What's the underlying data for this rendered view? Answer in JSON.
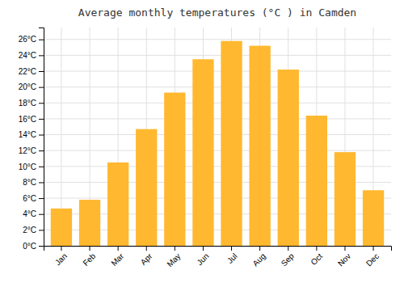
{
  "chart_data": {
    "type": "bar",
    "title": "Average monthly temperatures (°C ) in Camden",
    "categories": [
      "Jan",
      "Feb",
      "Mar",
      "Apr",
      "May",
      "Jun",
      "Jul",
      "Aug",
      "Sep",
      "Oct",
      "Nov",
      "Dec"
    ],
    "values": [
      4.7,
      5.8,
      10.5,
      14.7,
      19.3,
      23.5,
      25.8,
      25.2,
      22.2,
      16.4,
      11.8,
      7.0
    ],
    "color": "#FFB830",
    "ylim": [
      0,
      27.5
    ],
    "yticks": [
      {
        "value": 0,
        "label": "0°C"
      },
      {
        "value": 2,
        "label": "2°C"
      },
      {
        "value": 4,
        "label": "4°C"
      },
      {
        "value": 6,
        "label": "6°C"
      },
      {
        "value": 8,
        "label": "8°C"
      },
      {
        "value": 10,
        "label": "10°C"
      },
      {
        "value": 12,
        "label": "12°C"
      },
      {
        "value": 14,
        "label": "14°C"
      },
      {
        "value": 16,
        "label": "16°C"
      },
      {
        "value": 18,
        "label": "18°C"
      },
      {
        "value": 20,
        "label": "20°C"
      },
      {
        "value": 22,
        "label": "22°C"
      },
      {
        "value": 24,
        "label": "24°C"
      },
      {
        "value": 26,
        "label": "26°C"
      }
    ],
    "grid": true
  }
}
